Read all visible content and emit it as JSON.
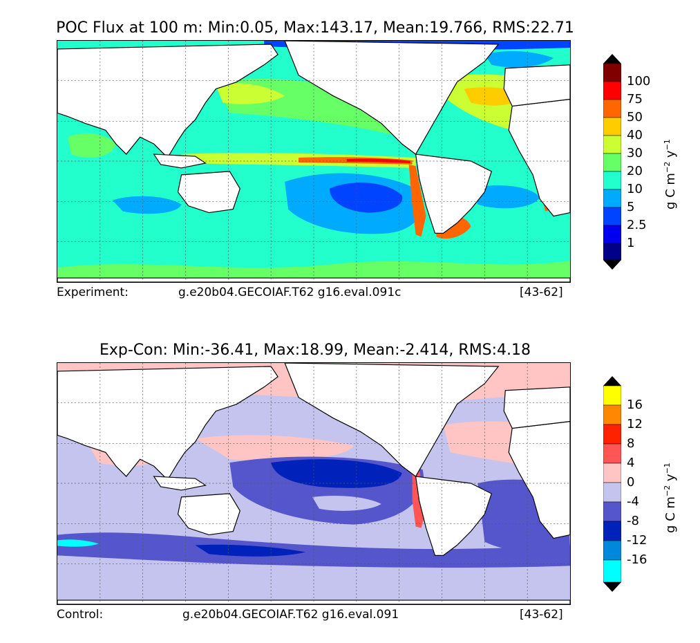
{
  "panels": [
    {
      "id": "experiment",
      "title": "POC Flux at 100 m: Min:0.05, Max:143.17, Mean:19.766, RMS:22.71",
      "caption_label": "Experiment:",
      "caption_run": "g.e20b04.GECOIAF.T62 g16.eval.091c",
      "caption_years": "[43-62]",
      "colorbar": {
        "levels": [
          "100",
          "75",
          "50",
          "40",
          "30",
          "20",
          "10",
          "5",
          "2.5",
          "1"
        ],
        "colors_top_to_bottom": [
          "#000000",
          "#800000",
          "#ff0000",
          "#ff6600",
          "#ffcc00",
          "#ccff33",
          "#66ff66",
          "#22ffcc",
          "#00aaff",
          "#0044ff",
          "#0000ee",
          "#000088",
          "#000000"
        ],
        "units_prefix": "g C m",
        "units_exp1": "−2",
        "units_mid": " y",
        "units_exp2": "−1"
      },
      "ocean_background": "#22ffcc",
      "ocean_regions": [
        {
          "name": "subtropical-south-pacific",
          "color": "#00aaff"
        },
        {
          "name": "pacific-gyre-core",
          "color": "#0044ff"
        },
        {
          "name": "equatorial-pacific",
          "color": "#ff6600"
        },
        {
          "name": "southern-ocean",
          "color": "#66ff66"
        },
        {
          "name": "north-atlantic",
          "color": "#ccff33"
        },
        {
          "name": "patagonian-shelf",
          "color": "#ff6600"
        }
      ]
    },
    {
      "id": "difference",
      "title": "Exp-Con: Min:-36.41, Max:18.99, Mean:-2.414, RMS:4.18",
      "caption_label": "Control:",
      "caption_run": "g.e20b04.GECOIAF.T62 g16.eval.091",
      "caption_years": "[43-62]",
      "colorbar": {
        "levels": [
          "16",
          "12",
          "8",
          "4",
          "0",
          "-4",
          "-8",
          "-12",
          "-16"
        ],
        "colors_top_to_bottom": [
          "#000000",
          "#ffff00",
          "#ff8800",
          "#ff2200",
          "#ff5555",
          "#ffc4c4",
          "#c4c4ee",
          "#5555cc",
          "#0022bb",
          "#0088dd",
          "#00ffff",
          "#000000"
        ],
        "units_prefix": "g C m",
        "units_exp1": "−2",
        "units_mid": " y",
        "units_exp2": "−1"
      },
      "ocean_background": "#c4c4ee",
      "ocean_regions": [
        {
          "name": "pacific-negative-band",
          "color": "#5555cc"
        },
        {
          "name": "pacific-strong-negative",
          "color": "#0022bb"
        },
        {
          "name": "southern-ocean-negative",
          "color": "#5555cc"
        },
        {
          "name": "coastal-positive",
          "color": "#ffc4c4"
        },
        {
          "name": "drake-passage-min",
          "color": "#00ffff"
        }
      ]
    }
  ]
}
